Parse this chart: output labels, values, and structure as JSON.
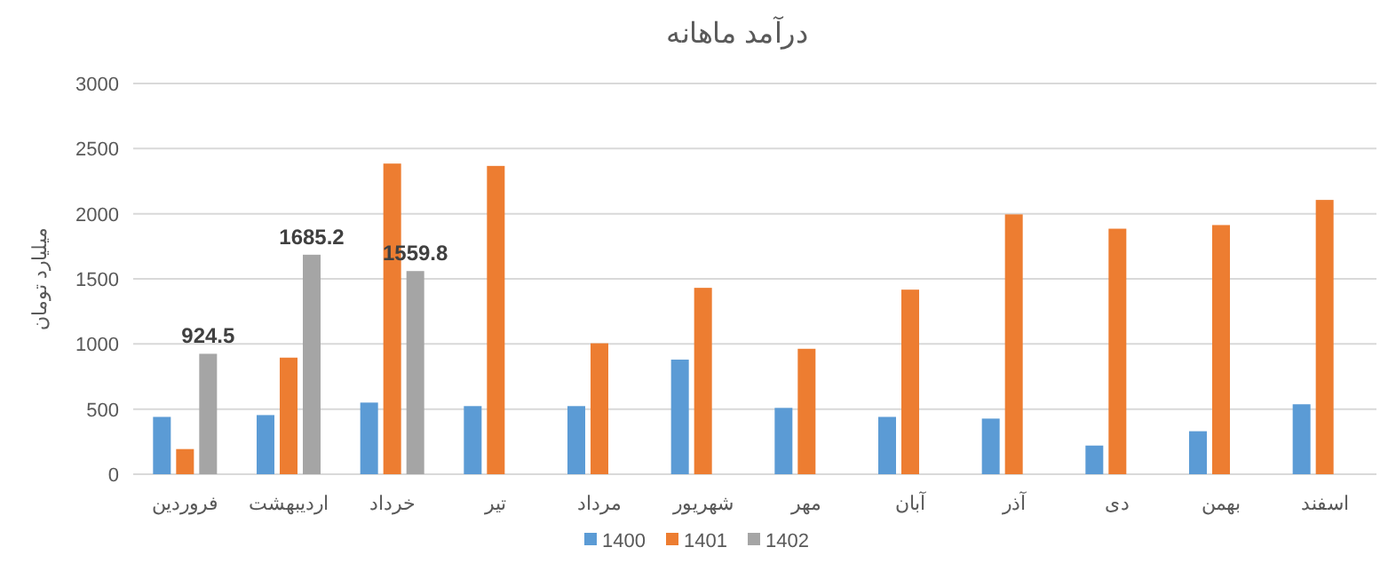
{
  "chart_data": {
    "type": "bar",
    "title": "درآمد ماهانه",
    "ylabel": "میلیارد تومان",
    "categories": [
      "فروردین",
      "اردیبهشت",
      "خرداد",
      "تیر",
      "مرداد",
      "شهریور",
      "مهر",
      "آبان",
      "آذر",
      "دی",
      "بهمن",
      "اسفند"
    ],
    "series": [
      {
        "name": "1400",
        "color": "#5b9bd5",
        "values": [
          440,
          454,
          550,
          523,
          523,
          880,
          509,
          440,
          427,
          220,
          330,
          537
        ]
      },
      {
        "name": "1401",
        "color": "#ed7d31",
        "values": [
          193,
          895,
          2385,
          2367,
          1005,
          1431,
          963,
          1417,
          1995,
          1885,
          1913,
          2106
        ]
      },
      {
        "name": "1402",
        "color": "#a5a5a5",
        "values": [
          924.5,
          1685.2,
          1559.8,
          null,
          null,
          null,
          null,
          null,
          null,
          null,
          null,
          null
        ],
        "value_labels": [
          "924.5",
          "1685.2",
          "1559.8",
          null,
          null,
          null,
          null,
          null,
          null,
          null,
          null,
          null
        ]
      }
    ],
    "ylim": [
      0,
      3000
    ],
    "yticks": [
      0,
      500,
      1000,
      1500,
      2000,
      2500,
      3000
    ],
    "grid": "y",
    "legend": "bottom"
  }
}
